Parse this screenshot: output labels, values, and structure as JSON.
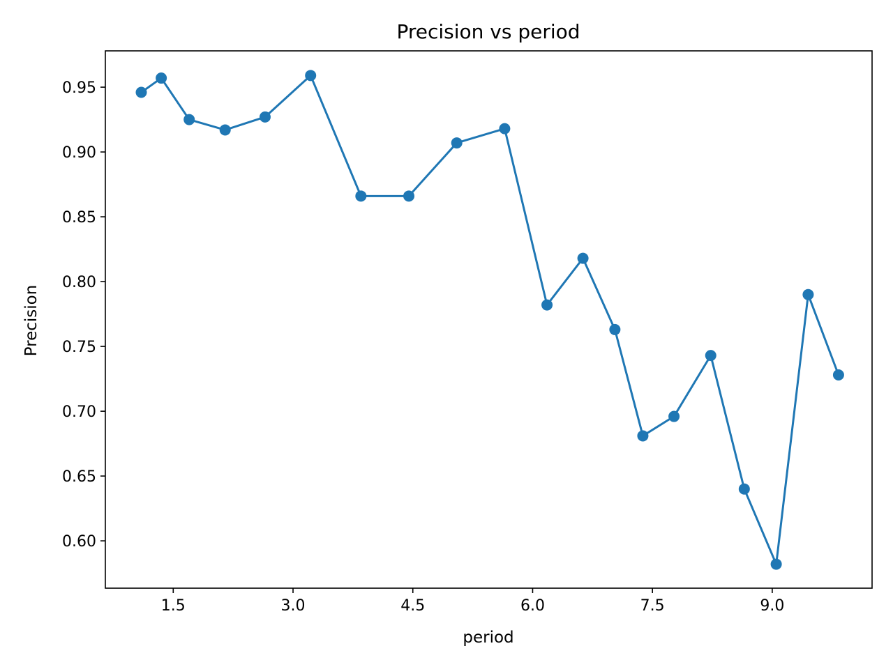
{
  "chart_data": {
    "type": "line",
    "title": "Precision vs period",
    "xlabel": "period",
    "ylabel": "Precision",
    "xlim": [
      0.65,
      10.25
    ],
    "ylim": [
      0.5635,
      0.978
    ],
    "xticks": [
      1.5,
      3.0,
      4.5,
      6.0,
      7.5,
      9.0
    ],
    "xtick_labels": [
      "1.5",
      "3.0",
      "4.5",
      "6.0",
      "7.5",
      "9.0"
    ],
    "yticks": [
      0.6,
      0.65,
      0.7,
      0.75,
      0.8,
      0.85,
      0.9,
      0.95
    ],
    "ytick_labels": [
      "0.60",
      "0.65",
      "0.70",
      "0.75",
      "0.80",
      "0.85",
      "0.90",
      "0.95"
    ],
    "grid": false,
    "series": [
      {
        "color": "#1f77b4",
        "marker": "circle",
        "x": [
          1.1,
          1.35,
          1.7,
          2.15,
          2.65,
          3.22,
          3.85,
          4.45,
          5.05,
          5.65,
          6.18,
          6.63,
          7.03,
          7.38,
          7.77,
          8.23,
          8.65,
          9.05,
          9.45,
          9.83
        ],
        "y": [
          0.946,
          0.957,
          0.925,
          0.917,
          0.927,
          0.959,
          0.866,
          0.866,
          0.907,
          0.918,
          0.782,
          0.818,
          0.763,
          0.681,
          0.696,
          0.743,
          0.64,
          0.582,
          0.79,
          0.728
        ]
      }
    ]
  }
}
